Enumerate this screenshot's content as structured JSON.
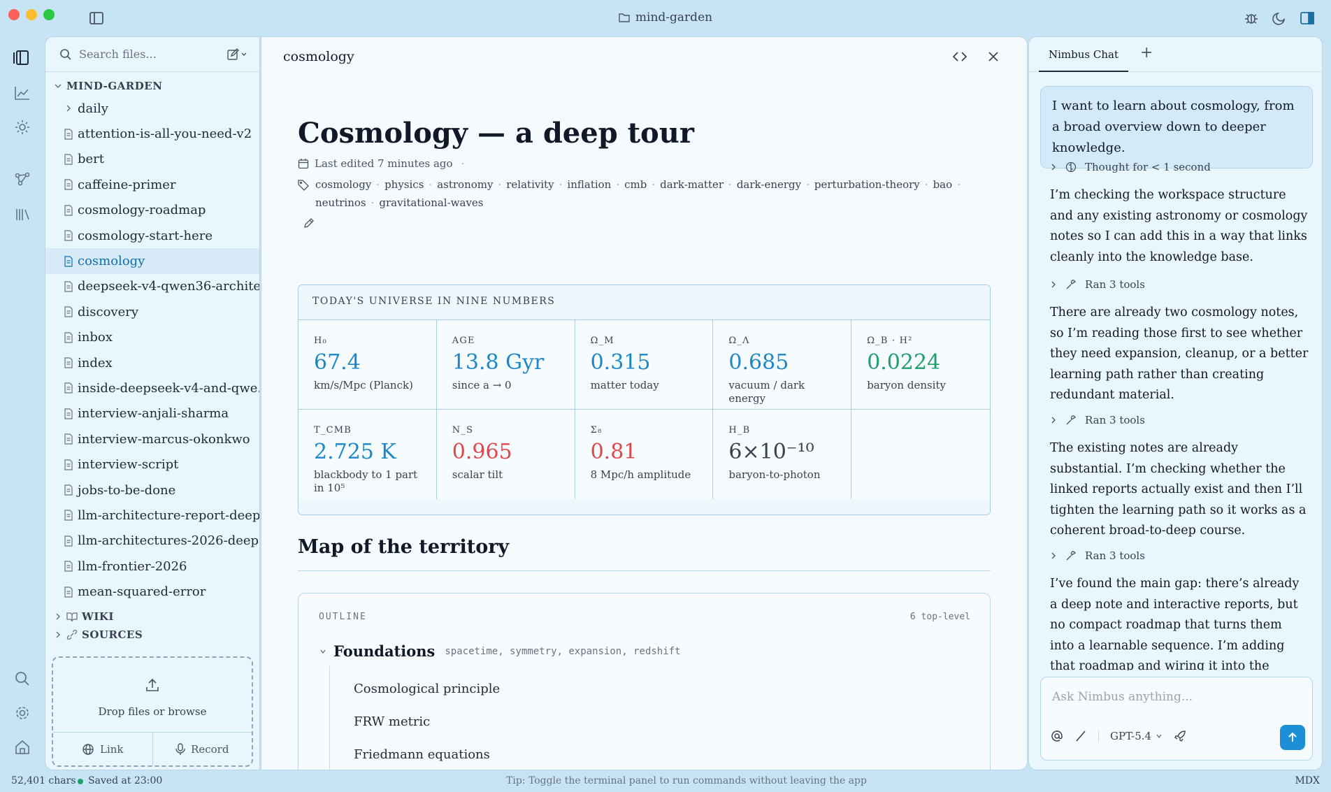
{
  "window": {
    "title": "mind-garden"
  },
  "sidebar": {
    "search_placeholder": "Search files...",
    "root_label": "MIND-GARDEN",
    "items": [
      {
        "label": "daily",
        "type": "folder"
      },
      {
        "label": "attention-is-all-you-need-v2",
        "type": "file"
      },
      {
        "label": "bert",
        "type": "file"
      },
      {
        "label": "caffeine-primer",
        "type": "file"
      },
      {
        "label": "cosmology-roadmap",
        "type": "file"
      },
      {
        "label": "cosmology-start-here",
        "type": "file"
      },
      {
        "label": "cosmology",
        "type": "file",
        "active": true
      },
      {
        "label": "deepseek-v4-qwen36-archite...",
        "type": "file"
      },
      {
        "label": "discovery",
        "type": "file"
      },
      {
        "label": "inbox",
        "type": "file"
      },
      {
        "label": "index",
        "type": "file"
      },
      {
        "label": "inside-deepseek-v4-and-qwe...",
        "type": "file"
      },
      {
        "label": "interview-anjali-sharma",
        "type": "file"
      },
      {
        "label": "interview-marcus-okonkwo",
        "type": "file"
      },
      {
        "label": "interview-script",
        "type": "file"
      },
      {
        "label": "jobs-to-be-done",
        "type": "file"
      },
      {
        "label": "llm-architecture-report-deep...",
        "type": "file"
      },
      {
        "label": "llm-architectures-2026-deep...",
        "type": "file"
      },
      {
        "label": "llm-frontier-2026",
        "type": "file"
      },
      {
        "label": "mean-squared-error",
        "type": "file"
      }
    ],
    "wiki_label": "WIKI",
    "sources_label": "SOURCES",
    "dropzone": {
      "text": "Drop files or browse",
      "link_label": "Link",
      "record_label": "Record"
    }
  },
  "editor": {
    "tab_title": "cosmology",
    "doc_title": "Cosmology — a deep tour",
    "last_edited": "Last edited 7 minutes ago",
    "meta_sep": "·",
    "tag_sep": "·",
    "tags": [
      "cosmology",
      "physics",
      "astronomy",
      "relativity",
      "inflation",
      "cmb",
      "dark-matter",
      "dark-energy",
      "perturbation-theory",
      "bao",
      "neutrinos",
      "gravitational-waves"
    ],
    "panel": {
      "heading": "TODAY'S UNIVERSE IN NINE NUMBERS",
      "cells": [
        {
          "label": "H₀",
          "value": "67.4",
          "sub": "km/s/Mpc (Planck)",
          "color": "#1b87c9"
        },
        {
          "label": "AGE",
          "value": "13.8 Gyr",
          "sub": "since a → 0",
          "color": "#1b87c9"
        },
        {
          "label": "Ω_M",
          "value": "0.315",
          "sub": "matter today",
          "color": "#1b87c9"
        },
        {
          "label": "Ω_Λ",
          "value": "0.685",
          "sub": "vacuum / dark energy",
          "color": "#1b87c9"
        },
        {
          "label": "Ω_B · H²",
          "value": "0.0224",
          "sub": "baryon density",
          "color": "#1f9e6e"
        },
        {
          "label": "T_CMB",
          "value": "2.725 K",
          "sub": "blackbody to 1 part in 10⁵",
          "color": "#1b87c9"
        },
        {
          "label": "N_S",
          "value": "0.965",
          "sub": "scalar tilt",
          "color": "#e0474c"
        },
        {
          "label": "Σ₈",
          "value": "0.81",
          "sub": "8 Mpc/h amplitude",
          "color": "#e0474c"
        },
        {
          "label": "H_B",
          "value": "6×10⁻¹⁰",
          "sub": "baryon-to-photon",
          "color": "#374151"
        },
        {
          "label": "",
          "value": "",
          "sub": "",
          "color": "#374151"
        }
      ]
    },
    "section_heading": "Map of the territory",
    "outline": {
      "label": "OUTLINE",
      "count": "6 top-level",
      "top": {
        "title": "Foundations",
        "keywords": "spacetime, symmetry, expansion, redshift"
      },
      "children": [
        "Cosmological principle",
        "FRW metric",
        "Friedmann equations"
      ]
    }
  },
  "chat": {
    "tab_label": "Nimbus Chat",
    "user_message": "I want to learn about cosmology, from a broad overview down to deeper knowledge.",
    "thought_label": "Thought for < 1 second",
    "messages": [
      "I’m checking the workspace structure and any existing astronomy or cosmology notes so I can add this in a way that links cleanly into the knowledge base.",
      "There are already two cosmology notes, so I’m reading those first to see whether they need expansion, cleanup, or a better learning path rather than creating redundant material.",
      "The existing notes are already substantial. I’m checking whether the linked reports actually exist and then I’ll tighten the learning path so it works as a coherent broad-to-deep course.",
      "I’ve found the main gap: there’s already a deep note and interactive reports, but no compact roadmap that turns them into a learnable sequence. I’m adding that roadmap and wiring it into the existing entry"
    ],
    "tool_label": "Ran 3 tools",
    "input_placeholder": "Ask Nimbus anything...",
    "model_label": "GPT-5.4"
  },
  "status": {
    "chars": "52,401 chars",
    "saved": "Saved at 23:00",
    "tip": "Tip: Toggle the terminal panel to run commands without leaving the app",
    "mode": "MDX"
  },
  "colors": {
    "accent": "#1d8fd6",
    "saved_dot": "#22a06b"
  }
}
